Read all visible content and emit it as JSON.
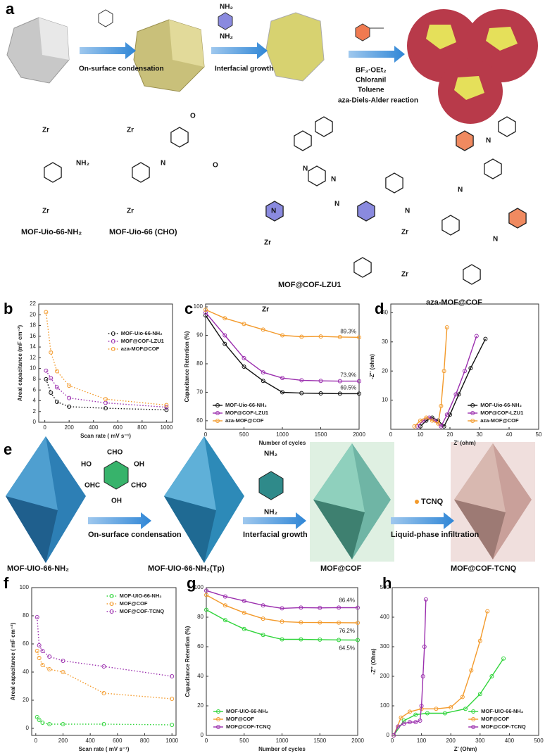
{
  "panel_labels": [
    "a",
    "b",
    "c",
    "d",
    "e",
    "f",
    "g",
    "h"
  ],
  "scheme_a": {
    "steps": [
      "On-surface condensation",
      "Interfacial growth"
    ],
    "conditions": [
      "BF₃·OEt₂",
      "Chloranil",
      "Toluene"
    ],
    "reaction": "aza-Diels-Alder reaction",
    "reagent_labels": [
      "NH₂",
      "NH₂"
    ],
    "structures": [
      "MOF-Uio-66-NH₂",
      "MOF-Uio-66 (CHO)",
      "MOF@COF-LZU1",
      "aza-MOF@COF"
    ],
    "atoms": [
      "Zr",
      "NH₂",
      "Zr",
      "Zr",
      "N",
      "O",
      "O",
      "Zr",
      "Zr",
      "N",
      "N",
      "N",
      "N",
      "Zr",
      "Zr",
      "N",
      "N",
      "N",
      "N",
      "Zr"
    ]
  },
  "scheme_e": {
    "steps": [
      "On-surface condensation",
      "Interfacial growth",
      "Liquid-phase infiltration"
    ],
    "dopant": "TCNQ",
    "labels": [
      "MOF-UIO-66-NH₂",
      "MOF-UIO-66-NH₂(Tp)",
      "MOF@COF",
      "MOF@COF-TCNQ"
    ],
    "groups": [
      "CHO",
      "OHC",
      "CHO",
      "HO",
      "OH",
      "OH",
      "NH₂",
      "NH₂"
    ]
  },
  "chart_data": [
    {
      "type": "line",
      "line_style": "dotted",
      "xlabel": "Scan rate ( mV s⁻¹)",
      "ylabel": "Areal capacitance (mF cm⁻²)",
      "xlim": [
        -50,
        1050
      ],
      "xticks": [
        0,
        200,
        400,
        600,
        800,
        1000
      ],
      "ylim": [
        0,
        22
      ],
      "yticks": [
        0,
        2,
        4,
        6,
        8,
        10,
        12,
        14,
        16,
        18,
        20,
        22
      ],
      "legend": "upper right",
      "series": [
        {
          "name": "MOF-Uio-66-NH₂",
          "color": "#111111",
          "x": [
            10,
            50,
            100,
            200,
            500,
            1000
          ],
          "values": [
            8,
            5.5,
            3.8,
            2.9,
            2.6,
            2.3
          ]
        },
        {
          "name": "MOF@COF-LZU1",
          "color": "#9b2fae",
          "x": [
            10,
            50,
            100,
            200,
            500,
            1000
          ],
          "values": [
            9.6,
            8.2,
            6.5,
            4.5,
            3.6,
            2.8
          ]
        },
        {
          "name": "aza-MOF@COF",
          "color": "#f39a2b",
          "x": [
            10,
            50,
            100,
            200,
            500,
            1000
          ],
          "values": [
            20.5,
            13,
            9.5,
            6.8,
            4.3,
            3.2
          ]
        }
      ]
    },
    {
      "type": "line",
      "line_style": "solid",
      "xlabel": "Number of cycles",
      "ylabel": "Capacitance Retention (%)",
      "xlim": [
        0,
        2000
      ],
      "xticks": [
        0,
        500,
        1000,
        1500,
        2000
      ],
      "ylim": [
        57,
        101
      ],
      "yticks": [
        60,
        70,
        80,
        90,
        100
      ],
      "legend": "lower left",
      "series": [
        {
          "name": "MOF-Uio-66-NH₂",
          "color": "#111111",
          "x": [
            0,
            250,
            500,
            750,
            1000,
            1250,
            1500,
            1750,
            2000
          ],
          "values": [
            97,
            87,
            79,
            74,
            70,
            69.7,
            69.6,
            69.5,
            69.5
          ],
          "end_label": "69.5%"
        },
        {
          "name": "MOF@COF-LZU1",
          "color": "#9b2fae",
          "x": [
            0,
            250,
            500,
            750,
            1000,
            1250,
            1500,
            1750,
            2000
          ],
          "values": [
            98,
            90,
            82,
            77,
            75,
            74.2,
            74,
            73.9,
            73.9
          ],
          "end_label": "73.9%"
        },
        {
          "name": "aza-MOF@COF",
          "color": "#f39a2b",
          "x": [
            0,
            250,
            500,
            750,
            1000,
            1250,
            1500,
            1750,
            2000
          ],
          "values": [
            99,
            96,
            94,
            92,
            90,
            89.5,
            89.6,
            89.4,
            89.3
          ],
          "end_label": "89.3%"
        }
      ]
    },
    {
      "type": "line",
      "line_style": "solid",
      "xlabel": "Z' (ohm)",
      "ylabel": "-Z'' (ohm)",
      "xlim": [
        0,
        50
      ],
      "xticks": [
        0,
        10,
        20,
        30,
        40,
        50
      ],
      "ylim": [
        0,
        43
      ],
      "yticks": [
        10,
        20,
        30,
        40
      ],
      "legend": "lower right",
      "series": [
        {
          "name": "MOF-Uio-66-NH₂",
          "color": "#111111",
          "x": [
            10,
            12,
            14,
            16,
            18,
            20,
            23,
            27,
            32
          ],
          "values": [
            1,
            3,
            4,
            3,
            1,
            5,
            12,
            21,
            31
          ]
        },
        {
          "name": "MOF@COF-LZU1",
          "color": "#9b2fae",
          "x": [
            9,
            11,
            13,
            15,
            17,
            19,
            22,
            25,
            29
          ],
          "values": [
            1,
            3,
            4,
            3,
            1,
            5,
            12,
            20,
            32
          ]
        },
        {
          "name": "aza-MOF@COF",
          "color": "#f39a2b",
          "x": [
            8,
            10,
            12,
            14,
            16,
            17,
            18,
            19
          ],
          "values": [
            1,
            3,
            4,
            3,
            2,
            8,
            20,
            35
          ]
        }
      ]
    },
    {
      "type": "line",
      "line_style": "dotted",
      "xlabel": "Scan rate ( mV s⁻¹)",
      "ylabel": "Areal capacitance ( mF cm⁻²)",
      "xlim": [
        -30,
        1030
      ],
      "xticks": [
        0,
        200,
        400,
        600,
        800,
        1000
      ],
      "ylim": [
        -5,
        100
      ],
      "yticks": [
        0,
        20,
        40,
        60,
        80,
        100
      ],
      "legend": "upper right",
      "series": [
        {
          "name": "MOF-UIO-66-NH₂",
          "color": "#2fd43a",
          "x": [
            10,
            25,
            50,
            100,
            200,
            500,
            1000
          ],
          "values": [
            8,
            6,
            4,
            3,
            3,
            3,
            2.5
          ]
        },
        {
          "name": "MOF@COF",
          "color": "#f39a2b",
          "x": [
            10,
            25,
            50,
            100,
            200,
            500,
            1000
          ],
          "values": [
            55,
            50,
            45,
            42,
            40,
            25,
            21
          ]
        },
        {
          "name": "MOF@COF-TCNQ",
          "color": "#9b2fae",
          "x": [
            10,
            25,
            50,
            100,
            200,
            500,
            1000
          ],
          "values": [
            79,
            59,
            55,
            51,
            48,
            44,
            37
          ]
        }
      ]
    },
    {
      "type": "line",
      "line_style": "solid",
      "xlabel": "Number of cycles",
      "ylabel": "Capacitance Retention (%)",
      "xlim": [
        0,
        2000
      ],
      "xticks": [
        0,
        500,
        1000,
        1500,
        2000
      ],
      "ylim": [
        0,
        100
      ],
      "yticks": [
        0,
        20,
        40,
        60,
        80,
        100
      ],
      "legend": "lower left",
      "series": [
        {
          "name": "MOF-UIO-66-NH₂",
          "color": "#2fd43a",
          "x": [
            0,
            250,
            500,
            750,
            1000,
            1250,
            1500,
            1750,
            2000
          ],
          "values": [
            85,
            78,
            72,
            68,
            65,
            65,
            64.8,
            64.6,
            64.5
          ],
          "end_label": "64.5%"
        },
        {
          "name": "MOF@COF",
          "color": "#f39a2b",
          "x": [
            0,
            250,
            500,
            750,
            1000,
            1250,
            1500,
            1750,
            2000
          ],
          "values": [
            95,
            88,
            83,
            79,
            77,
            76.5,
            76.4,
            76.3,
            76.2
          ],
          "end_label": "76.2%"
        },
        {
          "name": "MOF@COF-TCNQ",
          "color": "#9b2fae",
          "x": [
            0,
            250,
            500,
            750,
            1000,
            1250,
            1500,
            1750,
            2000
          ],
          "values": [
            98,
            94,
            91,
            88,
            86,
            86.5,
            86.3,
            86.5,
            86.4
          ],
          "end_label": "86.4%"
        }
      ]
    },
    {
      "type": "line",
      "line_style": "solid",
      "xlabel": "Z' (Ohm)",
      "ylabel": "-Z'' (Ohm)",
      "xlim": [
        0,
        500
      ],
      "xticks": [
        0,
        100,
        200,
        300,
        400,
        500
      ],
      "ylim": [
        0,
        500
      ],
      "yticks": [
        0,
        100,
        200,
        300,
        400,
        500
      ],
      "legend": "lower right",
      "series": [
        {
          "name": "MOF-UIO-66-NH₂",
          "color": "#2fd43a",
          "x": [
            5,
            40,
            80,
            120,
            180,
            250,
            300,
            340,
            380
          ],
          "values": [
            0,
            50,
            70,
            75,
            75,
            90,
            140,
            200,
            260
          ]
        },
        {
          "name": "MOF@COF",
          "color": "#f39a2b",
          "x": [
            5,
            30,
            60,
            100,
            150,
            200,
            240,
            270,
            300,
            325
          ],
          "values": [
            0,
            60,
            80,
            90,
            90,
            95,
            130,
            220,
            320,
            420
          ]
        },
        {
          "name": "MOF@COF-TCNQ",
          "color": "#9b2fae",
          "x": [
            5,
            20,
            40,
            60,
            80,
            95,
            100,
            105,
            110,
            115
          ],
          "values": [
            0,
            30,
            40,
            45,
            45,
            50,
            100,
            200,
            300,
            460
          ]
        }
      ]
    }
  ]
}
